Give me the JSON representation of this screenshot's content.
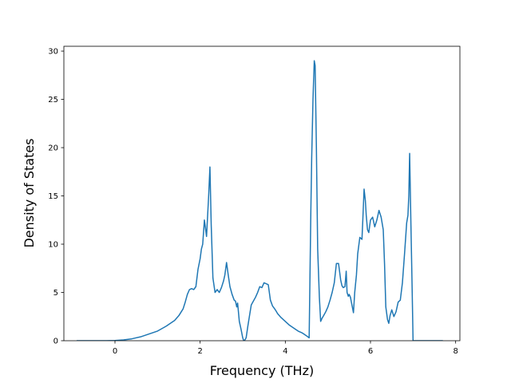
{
  "chart_data": {
    "type": "line",
    "title": "",
    "xlabel": "Frequency (THz)",
    "ylabel": "Density of States",
    "xlim": [
      -1.2,
      8.1
    ],
    "ylim": [
      0,
      30.5
    ],
    "xticks": [
      0,
      2,
      4,
      6,
      8
    ],
    "yticks": [
      0,
      5,
      10,
      15,
      20,
      25,
      30
    ],
    "grid": false,
    "line_color": "#1f77b4",
    "series": [
      {
        "x": [
          -0.9,
          -0.5,
          -0.2,
          0.0,
          0.2,
          0.4,
          0.6,
          0.8,
          1.0,
          1.2,
          1.3,
          1.4,
          1.5,
          1.6,
          1.65,
          1.7,
          1.75,
          1.8,
          1.85,
          1.9,
          1.95,
          2.0,
          2.03,
          2.06,
          2.1,
          2.15,
          2.2,
          2.23,
          2.26,
          2.3,
          2.35,
          2.4,
          2.45,
          2.5,
          2.55,
          2.58,
          2.62,
          2.66,
          2.7,
          2.75,
          2.8,
          2.83,
          2.86,
          2.88,
          2.92,
          2.96,
          3.0,
          3.02,
          3.04,
          3.08,
          3.12,
          3.16,
          3.2,
          3.25,
          3.3,
          3.35,
          3.4,
          3.45,
          3.5,
          3.55,
          3.6,
          3.65,
          3.7,
          3.75,
          3.78,
          3.82,
          3.9,
          4.0,
          4.1,
          4.2,
          4.3,
          4.4,
          4.5,
          4.56,
          4.6,
          4.62,
          4.65,
          4.68,
          4.7,
          4.73,
          4.76,
          4.8,
          4.83,
          4.86,
          4.9,
          4.95,
          5.0,
          5.05,
          5.1,
          5.15,
          5.2,
          5.25,
          5.3,
          5.33,
          5.36,
          5.4,
          5.43,
          5.45,
          5.48,
          5.5,
          5.53,
          5.56,
          5.6,
          5.63,
          5.67,
          5.7,
          5.75,
          5.8,
          5.82,
          5.85,
          5.88,
          5.9,
          5.93,
          5.96,
          6.0,
          6.05,
          6.1,
          6.15,
          6.2,
          6.25,
          6.3,
          6.33,
          6.36,
          6.4,
          6.43,
          6.46,
          6.5,
          6.55,
          6.6,
          6.65,
          6.7,
          6.75,
          6.8,
          6.85,
          6.88,
          6.9,
          6.92,
          6.95,
          6.98,
          7.0,
          7.2,
          7.5,
          7.7
        ],
        "values": [
          0,
          0,
          0,
          0.02,
          0.08,
          0.2,
          0.4,
          0.7,
          1.0,
          1.5,
          1.8,
          2.1,
          2.6,
          3.3,
          4.0,
          4.8,
          5.3,
          5.4,
          5.3,
          5.6,
          7.4,
          8.5,
          9.5,
          10.0,
          12.5,
          10.8,
          15.0,
          18.0,
          12.0,
          6.5,
          5.0,
          5.3,
          5.0,
          5.5,
          6.2,
          6.8,
          8.1,
          6.8,
          5.6,
          4.8,
          4.2,
          4.1,
          3.5,
          3.9,
          2.0,
          1.2,
          0.3,
          0.05,
          0.0,
          0.3,
          1.5,
          2.6,
          3.7,
          4.1,
          4.5,
          5.0,
          5.6,
          5.5,
          6.0,
          5.9,
          5.8,
          4.2,
          3.6,
          3.3,
          3.1,
          2.8,
          2.4,
          2.0,
          1.6,
          1.3,
          1.0,
          0.8,
          0.5,
          0.3,
          13.5,
          19.0,
          25.0,
          29.0,
          28.5,
          20.0,
          9.5,
          4.5,
          2.0,
          2.3,
          2.6,
          3.0,
          3.5,
          4.2,
          5.0,
          6.0,
          8.0,
          8.0,
          6.3,
          5.7,
          5.5,
          5.6,
          7.2,
          5.0,
          4.6,
          4.8,
          4.5,
          3.8,
          2.9,
          5.0,
          6.8,
          9.0,
          10.7,
          10.5,
          12.5,
          15.7,
          14.5,
          13.0,
          11.5,
          11.2,
          12.5,
          12.8,
          11.8,
          12.5,
          13.5,
          12.8,
          11.5,
          8.0,
          3.5,
          2.2,
          1.8,
          2.6,
          3.2,
          2.5,
          3.0,
          4.0,
          4.2,
          6.0,
          9.0,
          12.2,
          13.0,
          15.0,
          19.4,
          12.0,
          5.0,
          0.0,
          0.0,
          0.0,
          0.0
        ]
      }
    ]
  }
}
